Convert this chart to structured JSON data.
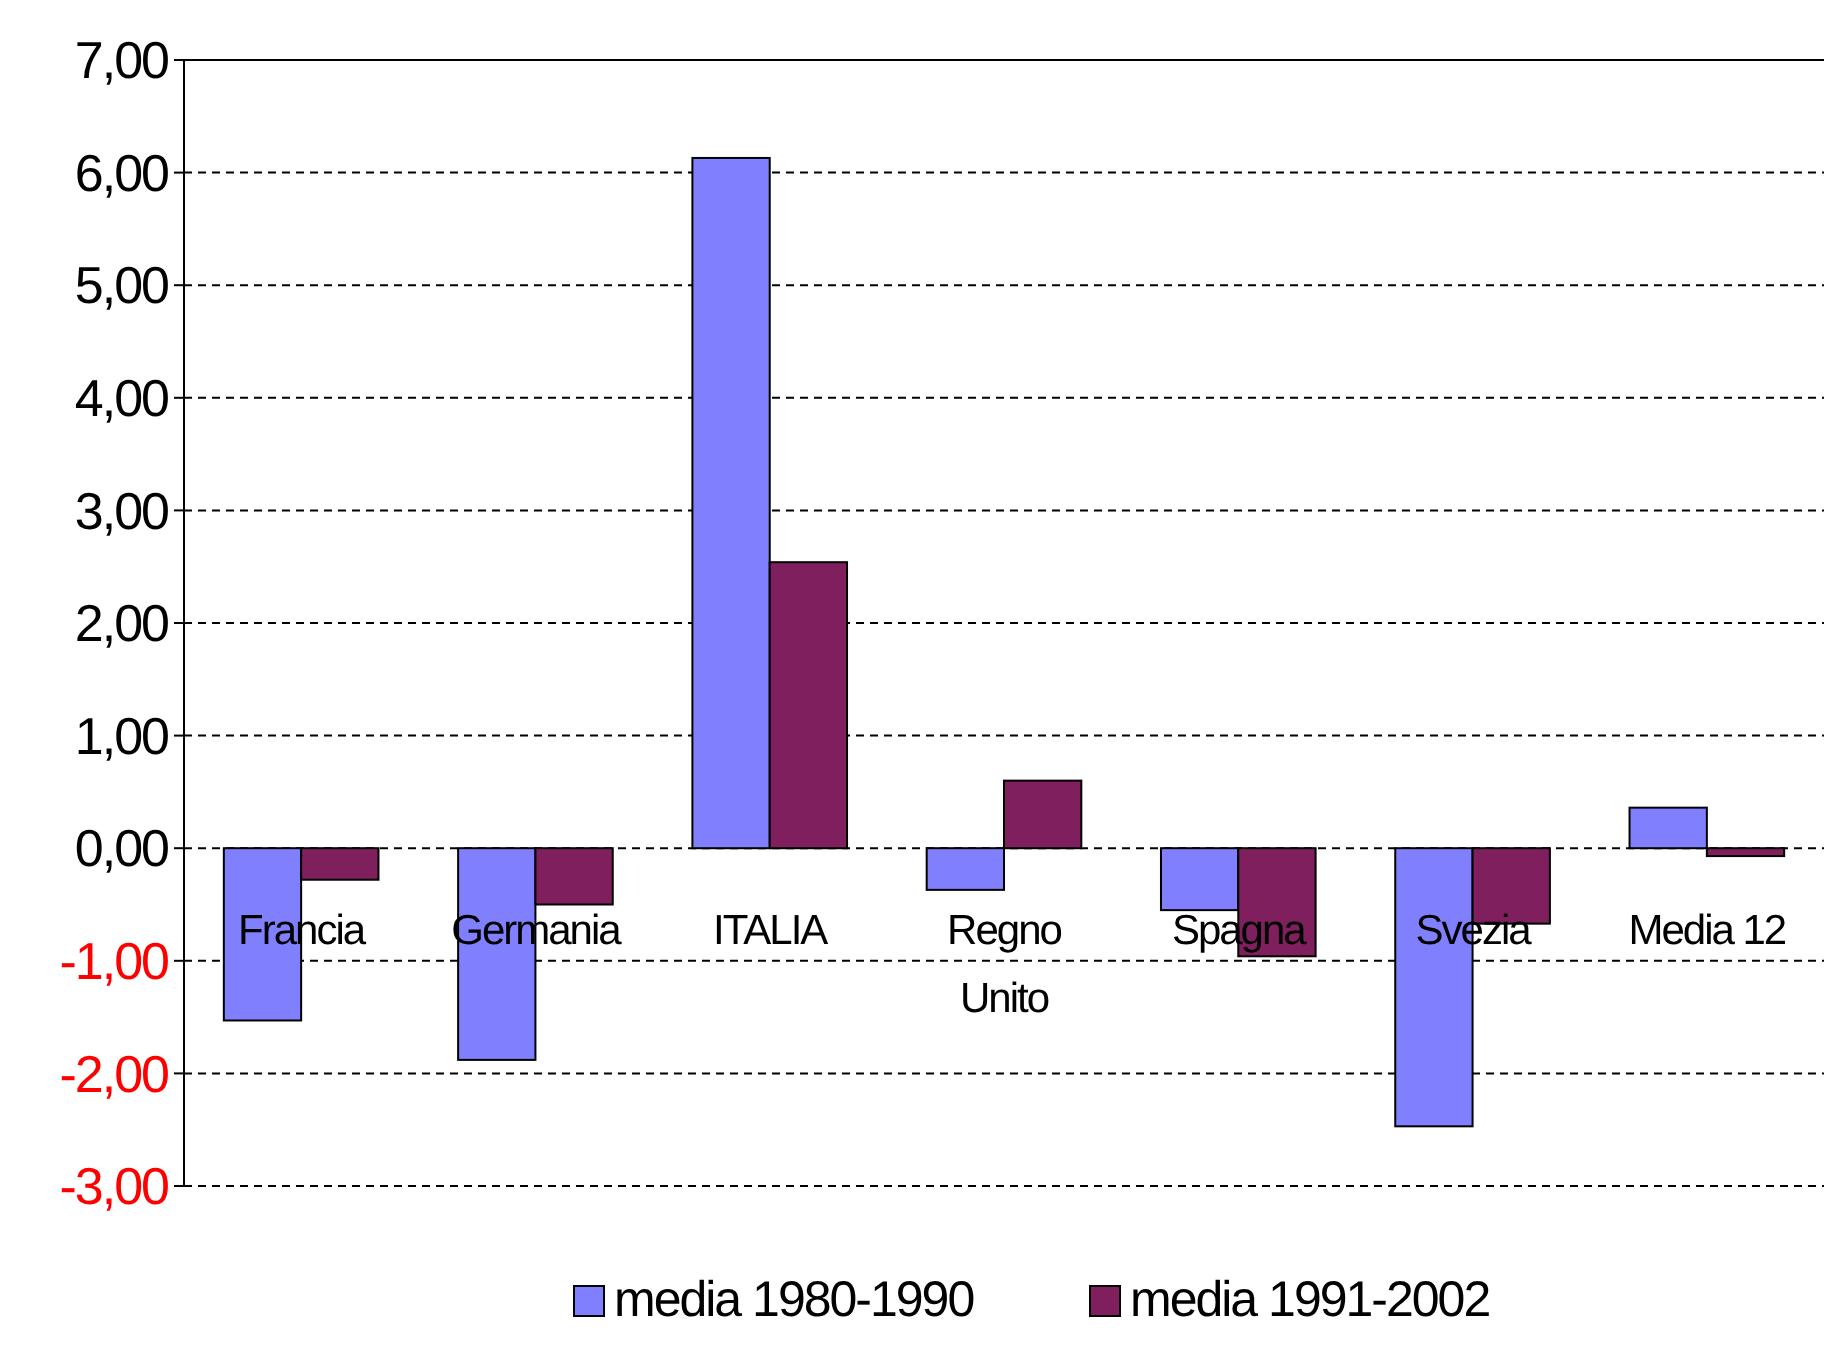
{
  "chart_data": {
    "type": "bar",
    "categories": [
      "Francia",
      "Germania",
      "ITALIA",
      "Regno Unito",
      "Spagna",
      "Svezia",
      "Media 12"
    ],
    "series": [
      {
        "name": "media 1980-1990",
        "color": "#8080ff",
        "values": [
          -1.53,
          -1.88,
          6.13,
          -0.37,
          -0.55,
          -2.47,
          0.36
        ]
      },
      {
        "name": "media 1991-2002",
        "color": "#801f5e",
        "values": [
          -0.28,
          -0.5,
          2.54,
          0.6,
          -0.96,
          -0.67,
          -0.07
        ]
      }
    ],
    "ylim": [
      -3,
      7
    ],
    "yticks": [
      {
        "value": -3,
        "label": "-3,00"
      },
      {
        "value": -2,
        "label": "-2,00"
      },
      {
        "value": -1,
        "label": "-1,00"
      },
      {
        "value": 0,
        "label": "0,00"
      },
      {
        "value": 1,
        "label": "1,00"
      },
      {
        "value": 2,
        "label": "2,00"
      },
      {
        "value": 3,
        "label": "3,00"
      },
      {
        "value": 4,
        "label": "4,00"
      },
      {
        "value": 5,
        "label": "5,00"
      },
      {
        "value": 6,
        "label": "6,00"
      },
      {
        "value": 7,
        "label": "7,00"
      }
    ],
    "grid": "y",
    "legend": "bottom"
  }
}
